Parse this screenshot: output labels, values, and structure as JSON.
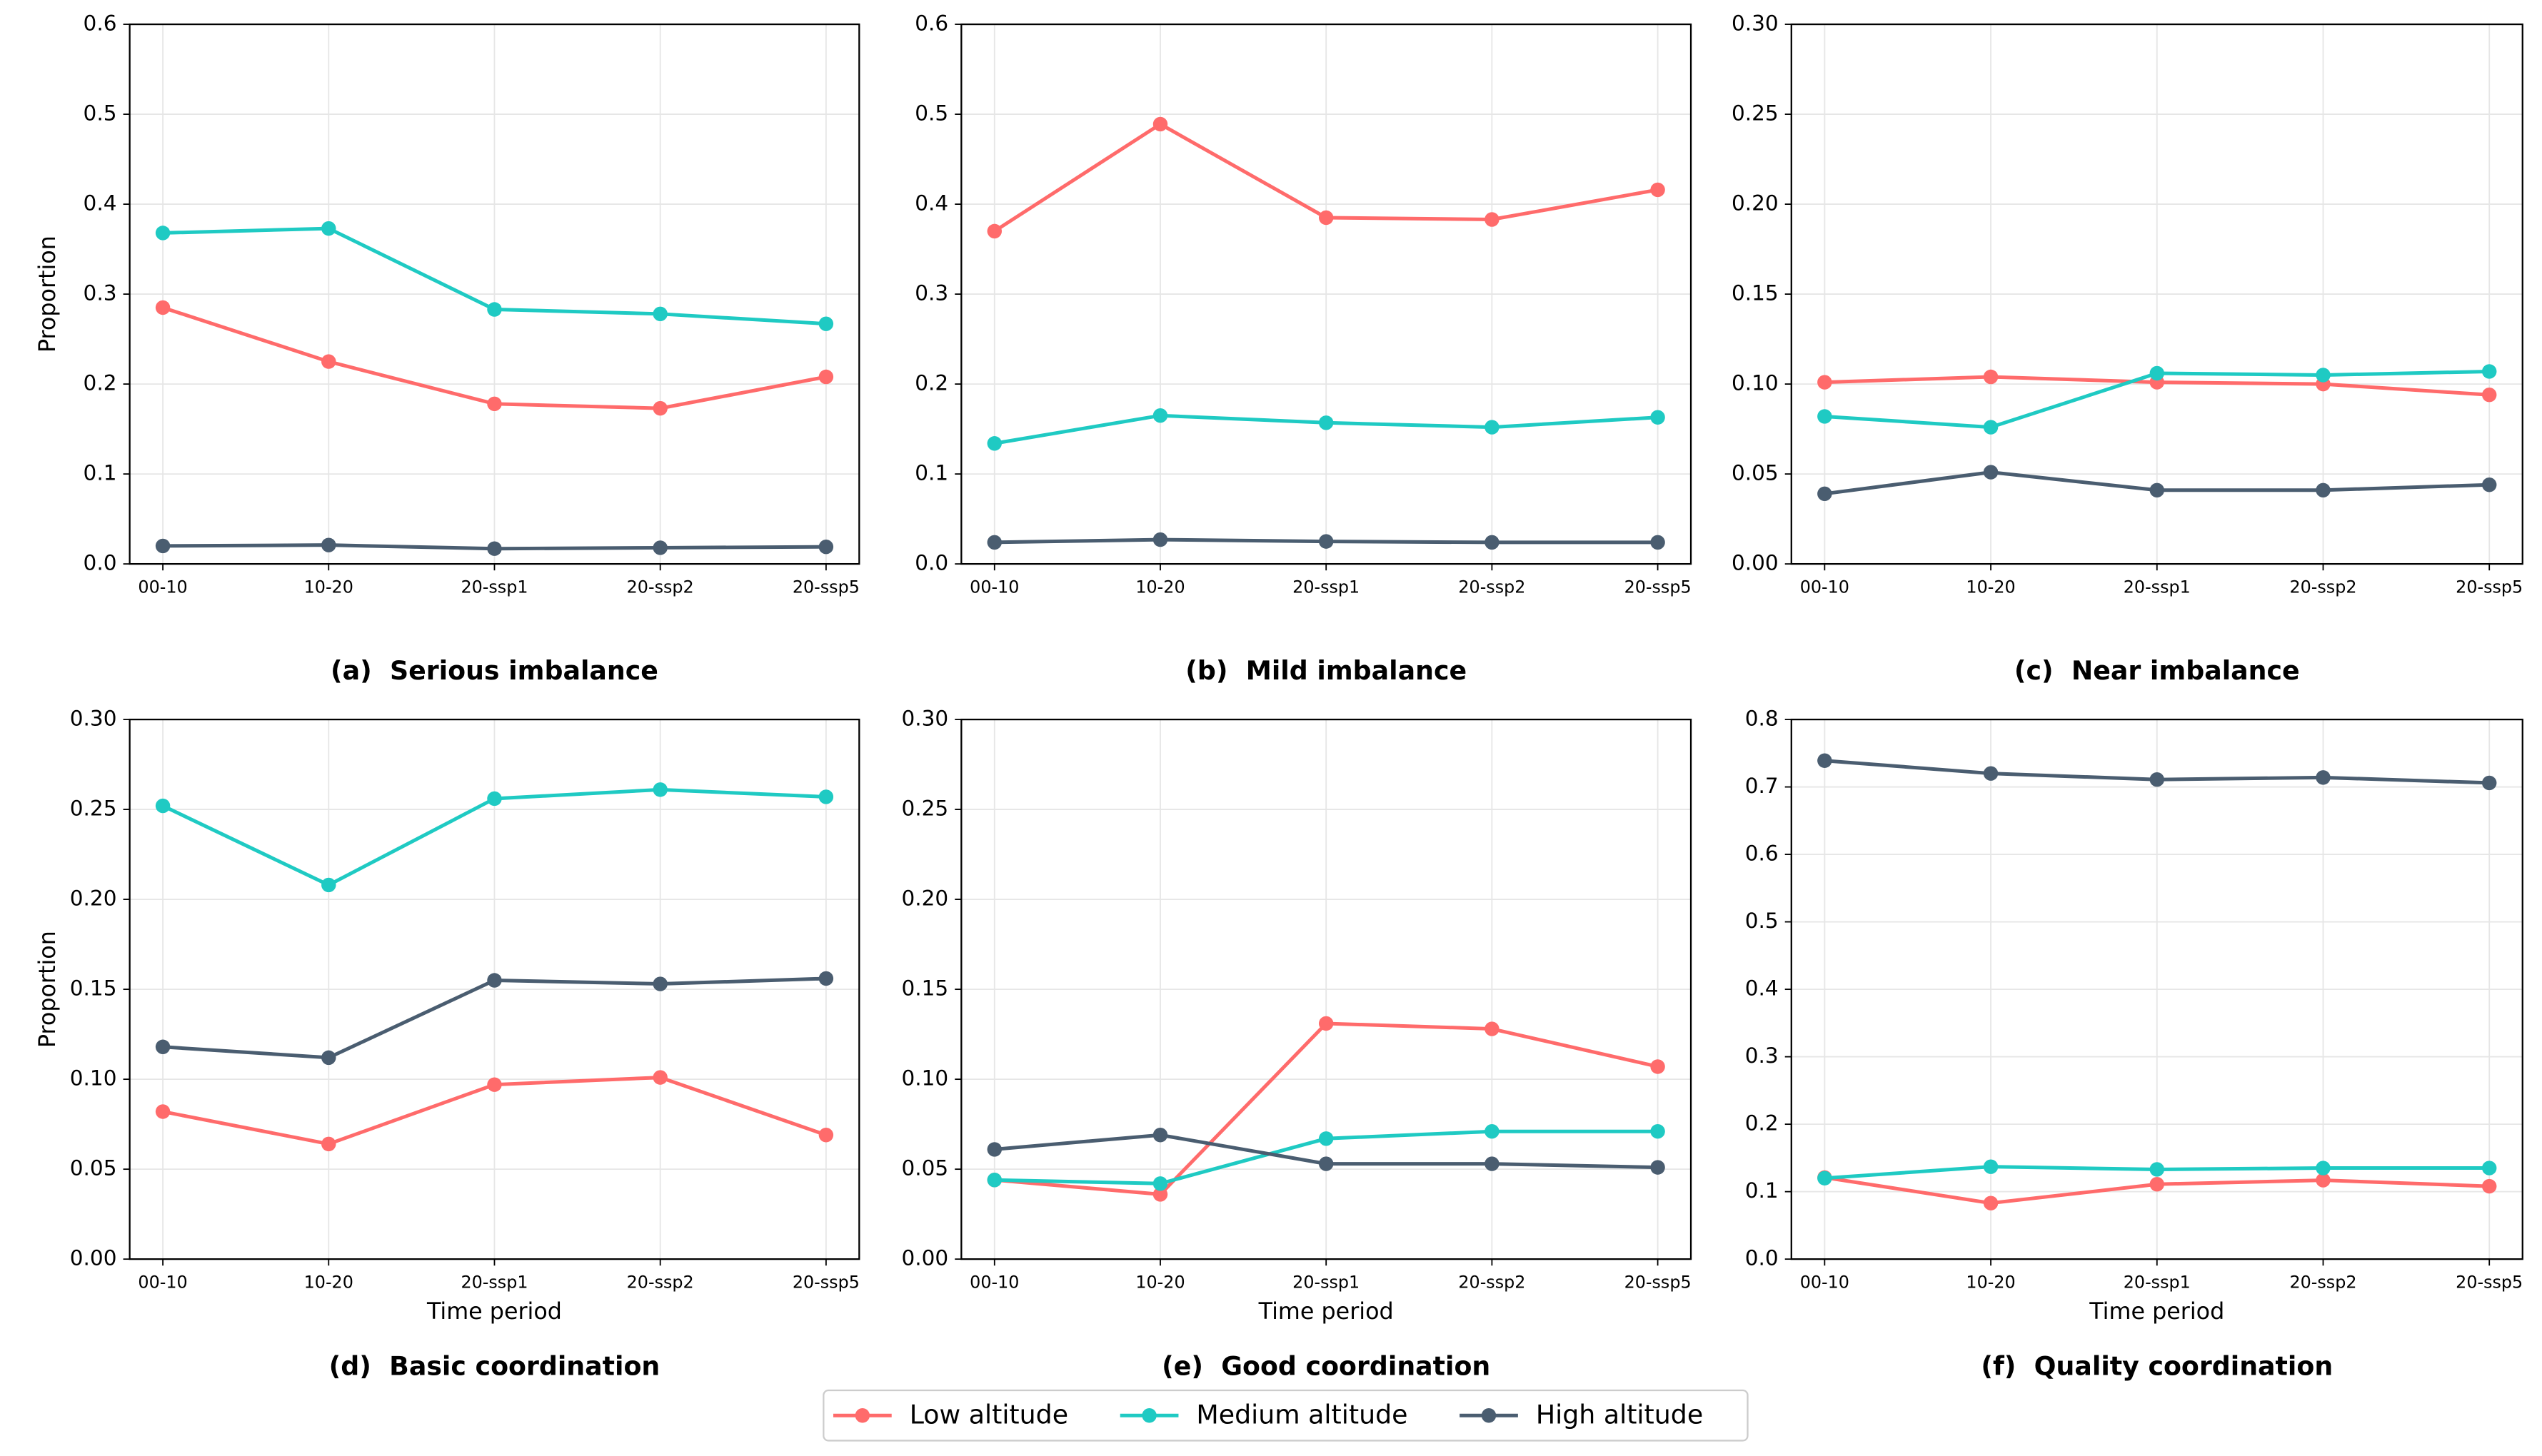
{
  "chart_data": [
    {
      "type": "line",
      "caption": "(a)  Serious imbalance",
      "ylabel": "Proportion",
      "categories": [
        "00-10",
        "10-20",
        "20-ssp1",
        "20-ssp2",
        "20-ssp5"
      ],
      "ylim": [
        0,
        0.6
      ],
      "yticks": [
        {
          "value": 0,
          "label": "0.0"
        },
        0.1,
        0.2,
        0.3,
        0.4,
        0.5,
        0.6
      ],
      "grid": true,
      "series": [
        {
          "name": "Low altitude",
          "color": "#ff6b6b",
          "values": [
            0.285,
            0.225,
            0.178,
            0.173,
            0.208
          ]
        },
        {
          "name": "Medium altitude",
          "color": "#1fcac3",
          "values": [
            0.368,
            0.373,
            0.283,
            0.278,
            0.267
          ]
        },
        {
          "name": "High altitude",
          "color": "#4a5d70",
          "values": [
            0.02,
            0.021,
            0.017,
            0.018,
            0.019
          ]
        }
      ]
    },
    {
      "type": "line",
      "caption": "(b)  Mild imbalance",
      "categories": [
        "00-10",
        "10-20",
        "20-ssp1",
        "20-ssp2",
        "20-ssp5"
      ],
      "ylim": [
        0,
        0.6
      ],
      "yticks": [
        {
          "value": 0,
          "label": "0.0"
        },
        0.1,
        0.2,
        0.3,
        0.4,
        0.5,
        0.6
      ],
      "grid": true,
      "series": [
        {
          "name": "Low altitude",
          "color": "#ff6b6b",
          "values": [
            0.37,
            0.489,
            0.385,
            0.383,
            0.416
          ]
        },
        {
          "name": "Medium altitude",
          "color": "#1fcac3",
          "values": [
            0.134,
            0.165,
            0.157,
            0.152,
            0.163
          ]
        },
        {
          "name": "High altitude",
          "color": "#4a5d70",
          "values": [
            0.024,
            0.027,
            0.025,
            0.024,
            0.024
          ]
        }
      ]
    },
    {
      "type": "line",
      "caption": "(c)  Near imbalance",
      "categories": [
        "00-10",
        "10-20",
        "20-ssp1",
        "20-ssp2",
        "20-ssp5"
      ],
      "ylim": [
        0,
        0.3
      ],
      "yticks": [
        {
          "value": 0,
          "label": "0.00"
        },
        {
          "value": 0.05,
          "label": "0.05"
        },
        {
          "value": 0.1,
          "label": "0.10"
        },
        {
          "value": 0.15,
          "label": "0.15"
        },
        {
          "value": 0.2,
          "label": "0.20"
        },
        {
          "value": 0.25,
          "label": "0.25"
        },
        {
          "value": 0.3,
          "label": "0.30"
        }
      ],
      "grid": true,
      "series": [
        {
          "name": "Low altitude",
          "color": "#ff6b6b",
          "values": [
            0.101,
            0.104,
            0.101,
            0.1,
            0.094
          ]
        },
        {
          "name": "Medium altitude",
          "color": "#1fcac3",
          "values": [
            0.082,
            0.076,
            0.106,
            0.105,
            0.107
          ]
        },
        {
          "name": "High altitude",
          "color": "#4a5d70",
          "values": [
            0.039,
            0.051,
            0.041,
            0.041,
            0.044
          ]
        }
      ]
    },
    {
      "type": "line",
      "caption": "(d)  Basic coordination",
      "ylabel": "Proportion",
      "xlabel": "Time period",
      "categories": [
        "00-10",
        "10-20",
        "20-ssp1",
        "20-ssp2",
        "20-ssp5"
      ],
      "ylim": [
        0,
        0.3
      ],
      "yticks": [
        {
          "value": 0,
          "label": "0.00"
        },
        {
          "value": 0.05,
          "label": "0.05"
        },
        {
          "value": 0.1,
          "label": "0.10"
        },
        {
          "value": 0.15,
          "label": "0.15"
        },
        {
          "value": 0.2,
          "label": "0.20"
        },
        {
          "value": 0.25,
          "label": "0.25"
        },
        {
          "value": 0.3,
          "label": "0.30"
        }
      ],
      "grid": true,
      "series": [
        {
          "name": "Low altitude",
          "color": "#ff6b6b",
          "values": [
            0.082,
            0.064,
            0.097,
            0.101,
            0.069
          ]
        },
        {
          "name": "Medium altitude",
          "color": "#1fcac3",
          "values": [
            0.252,
            0.208,
            0.256,
            0.261,
            0.257
          ]
        },
        {
          "name": "High altitude",
          "color": "#4a5d70",
          "values": [
            0.118,
            0.112,
            0.155,
            0.153,
            0.156
          ]
        }
      ]
    },
    {
      "type": "line",
      "caption": "(e)  Good coordination",
      "xlabel": "Time period",
      "categories": [
        "00-10",
        "10-20",
        "20-ssp1",
        "20-ssp2",
        "20-ssp5"
      ],
      "ylim": [
        0,
        0.3
      ],
      "yticks": [
        {
          "value": 0,
          "label": "0.00"
        },
        {
          "value": 0.05,
          "label": "0.05"
        },
        {
          "value": 0.1,
          "label": "0.10"
        },
        {
          "value": 0.15,
          "label": "0.15"
        },
        {
          "value": 0.2,
          "label": "0.20"
        },
        {
          "value": 0.25,
          "label": "0.25"
        },
        {
          "value": 0.3,
          "label": "0.30"
        }
      ],
      "grid": true,
      "series": [
        {
          "name": "Low altitude",
          "color": "#ff6b6b",
          "values": [
            0.044,
            0.036,
            0.131,
            0.128,
            0.107
          ]
        },
        {
          "name": "Medium altitude",
          "color": "#1fcac3",
          "values": [
            0.044,
            0.042,
            0.067,
            0.071,
            0.071
          ]
        },
        {
          "name": "High altitude",
          "color": "#4a5d70",
          "values": [
            0.061,
            0.069,
            0.053,
            0.053,
            0.051
          ]
        }
      ]
    },
    {
      "type": "line",
      "caption": "(f)  Quality coordination",
      "xlabel": "Time period",
      "categories": [
        "00-10",
        "10-20",
        "20-ssp1",
        "20-ssp2",
        "20-ssp5"
      ],
      "ylim": [
        0,
        0.8
      ],
      "yticks": [
        {
          "value": 0,
          "label": "0.0"
        },
        0.1,
        0.2,
        0.3,
        0.4,
        0.5,
        0.6,
        0.7,
        0.8
      ],
      "grid": true,
      "series": [
        {
          "name": "Low altitude",
          "color": "#ff6b6b",
          "values": [
            0.121,
            0.083,
            0.111,
            0.117,
            0.108
          ]
        },
        {
          "name": "Medium altitude",
          "color": "#1fcac3",
          "values": [
            0.12,
            0.137,
            0.133,
            0.135,
            0.135
          ]
        },
        {
          "name": "High altitude",
          "color": "#4a5d70",
          "values": [
            0.739,
            0.72,
            0.711,
            0.714,
            0.706
          ]
        }
      ]
    }
  ]
}
